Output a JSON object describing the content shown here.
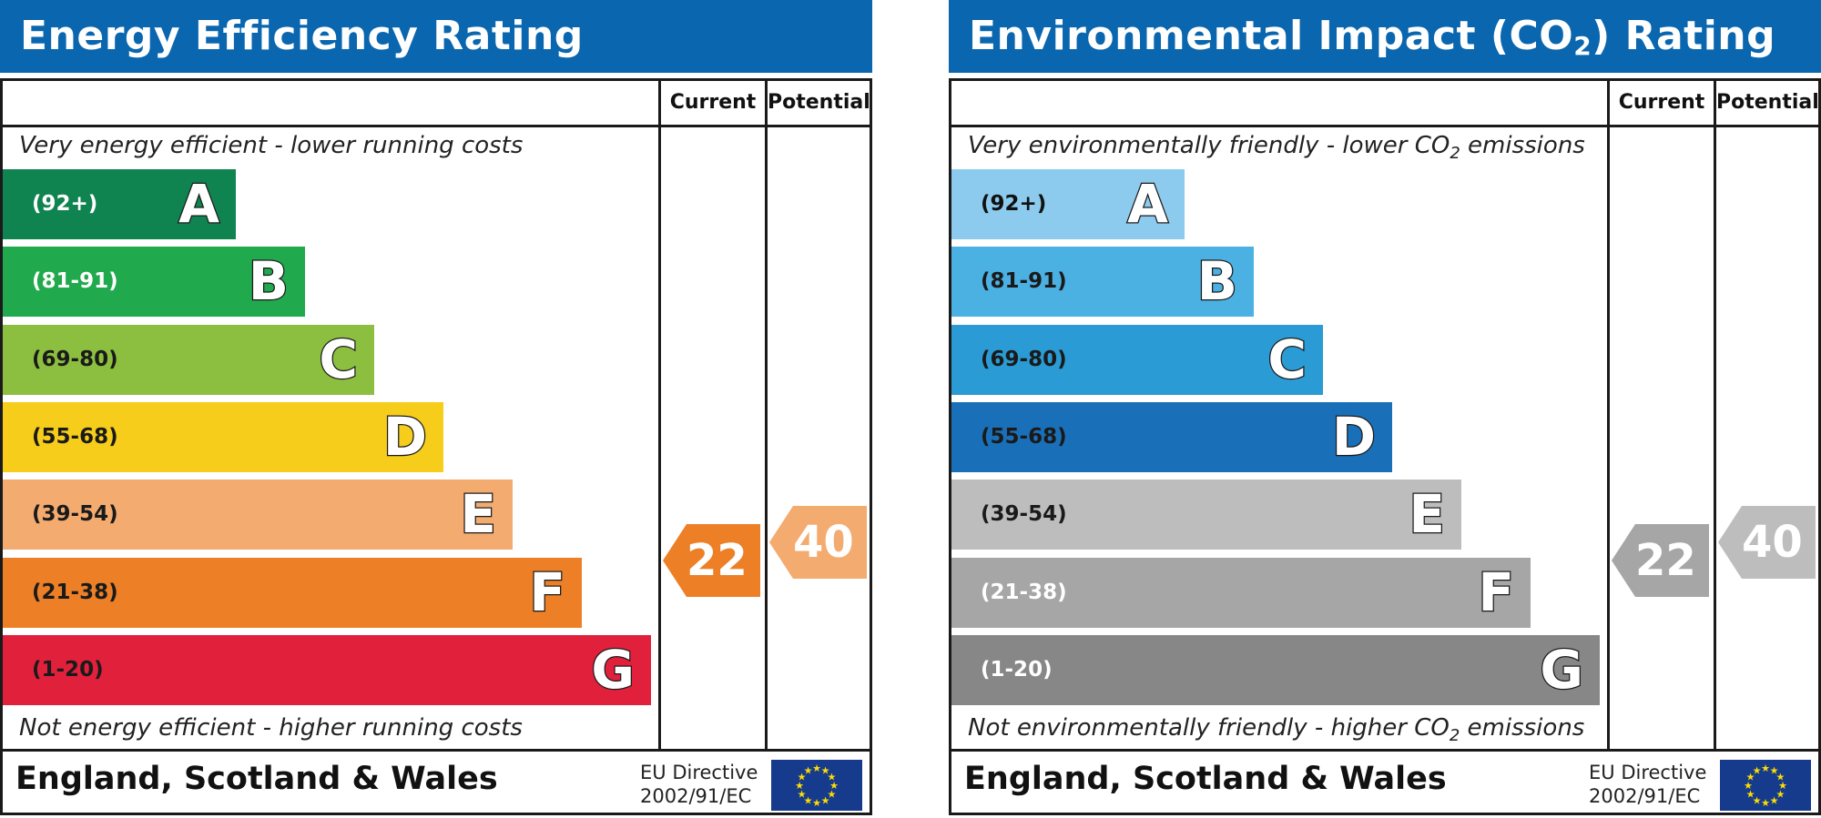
{
  "bands": [
    {
      "range": "(92+)",
      "letter": "A"
    },
    {
      "range": "(81-91)",
      "letter": "B"
    },
    {
      "range": "(69-80)",
      "letter": "C"
    },
    {
      "range": "(55-68)",
      "letter": "D"
    },
    {
      "range": "(39-54)",
      "letter": "E"
    },
    {
      "range": "(21-38)",
      "letter": "F"
    },
    {
      "range": "(1-20)",
      "letter": "G"
    }
  ],
  "panels": [
    {
      "title": "Energy Efficiency Rating",
      "current_label": "Current",
      "potential_label": "Potential",
      "top_caption": "Very energy efficient - lower running costs",
      "bottom_caption": "Not energy efficient - higher running costs",
      "band_colors": [
        "#0f8450",
        "#21a94d",
        "#8cbf3f",
        "#f6cd1b",
        "#f3ab6f",
        "#ed8027",
        "#e1203c"
      ],
      "range_colors": [
        "#ffffff",
        "#ffffff",
        "#1a1a1a",
        "#1a1a1a",
        "#1a1a1a",
        "#1a1a1a",
        "#1a1a1a"
      ],
      "current_value": "22",
      "current_color": "#ed8027",
      "potential_value": "40",
      "potential_color": "#f3ab6f",
      "footer": "England, Scotland & Wales",
      "directive_line1": "EU Directive",
      "directive_line2": "2002/91/EC"
    },
    {
      "title_prefix": "Environmental Impact (CO",
      "title_sub": "2",
      "title_suffix": ") Rating",
      "current_label": "Current",
      "potential_label": "Potential",
      "top_caption_prefix": "Very environmentally friendly - lower CO",
      "top_caption_sub": "2",
      "top_caption_suffix": " emissions",
      "bottom_caption_prefix": "Not environmentally friendly - higher CO",
      "bottom_caption_sub": "2",
      "bottom_caption_suffix": " emissions",
      "band_colors": [
        "#8ccbee",
        "#4bb1e3",
        "#2a9bd4",
        "#1a70b8",
        "#bdbdbd",
        "#a6a6a6",
        "#878787"
      ],
      "range_colors": [
        "#111111",
        "#1a1a1a",
        "#1a1a1a",
        "#1a1a1a",
        "#1a1a1a",
        "#ffffff",
        "#ffffff"
      ],
      "current_value": "22",
      "current_color": "#a6a6a6",
      "potential_value": "40",
      "potential_color": "#bdbdbd",
      "footer": "England, Scotland & Wales",
      "directive_line1": "EU Directive",
      "directive_line2": "2002/91/EC"
    }
  ]
}
